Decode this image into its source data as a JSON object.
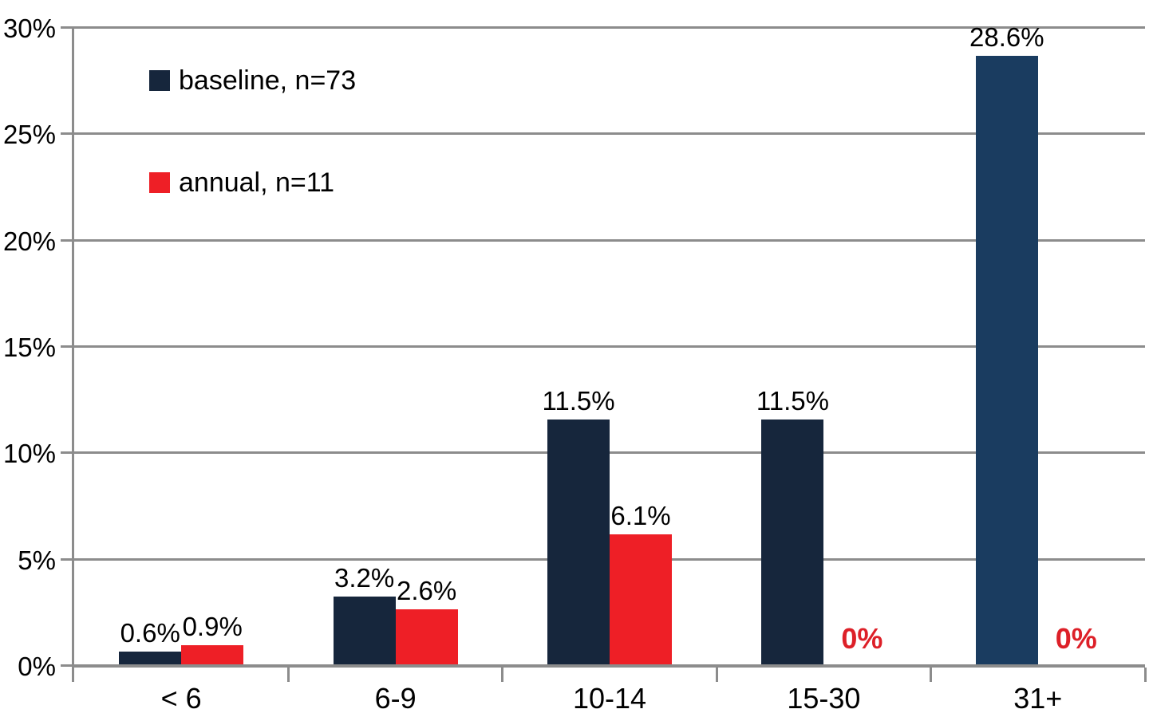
{
  "chart_data": {
    "type": "bar",
    "title": "",
    "categories": [
      "< 6",
      "6-9",
      "10-14",
      "15-30",
      "31+"
    ],
    "series": [
      {
        "name": "baseline, n=73",
        "color": "#16263C",
        "bar_colors": [
          "#16263C",
          "#16263C",
          "#16263C",
          "#16263C",
          "#1A3C60"
        ],
        "values": [
          0.6,
          3.2,
          11.5,
          11.5,
          28.6
        ],
        "labels": [
          "0.6%",
          "3.2%",
          "11.5%",
          "11.5%",
          "28.6%"
        ]
      },
      {
        "name": "annual, n=11",
        "color": "#EE1F26",
        "bar_colors": [
          "#EE1F26",
          "#EE1F26",
          "#EE1F26",
          "#EE1F26",
          "#EE1F26"
        ],
        "values": [
          0.9,
          2.6,
          6.1,
          0,
          0
        ],
        "labels": [
          "0.9%",
          "2.6%",
          "6.1%",
          "0%",
          "0%"
        ]
      }
    ],
    "xlabel": "",
    "ylabel": "",
    "ylim": [
      0,
      30
    ],
    "yticks": [
      {
        "label": "30%",
        "value": 30
      },
      {
        "label": "25%",
        "value": 25
      },
      {
        "label": "20%",
        "value": 20
      },
      {
        "label": "15%",
        "value": 15
      },
      {
        "label": "10%",
        "value": 10
      },
      {
        "label": "5%",
        "value": 5
      },
      {
        "label": "0%",
        "value": 0
      }
    ],
    "grid": true,
    "legend_position": "inside-top-left",
    "colors": {
      "grid": "#8C8C8C",
      "axis": "#8C8C8C",
      "label_text": "#000000",
      "zero_label": "#DD2028"
    }
  }
}
